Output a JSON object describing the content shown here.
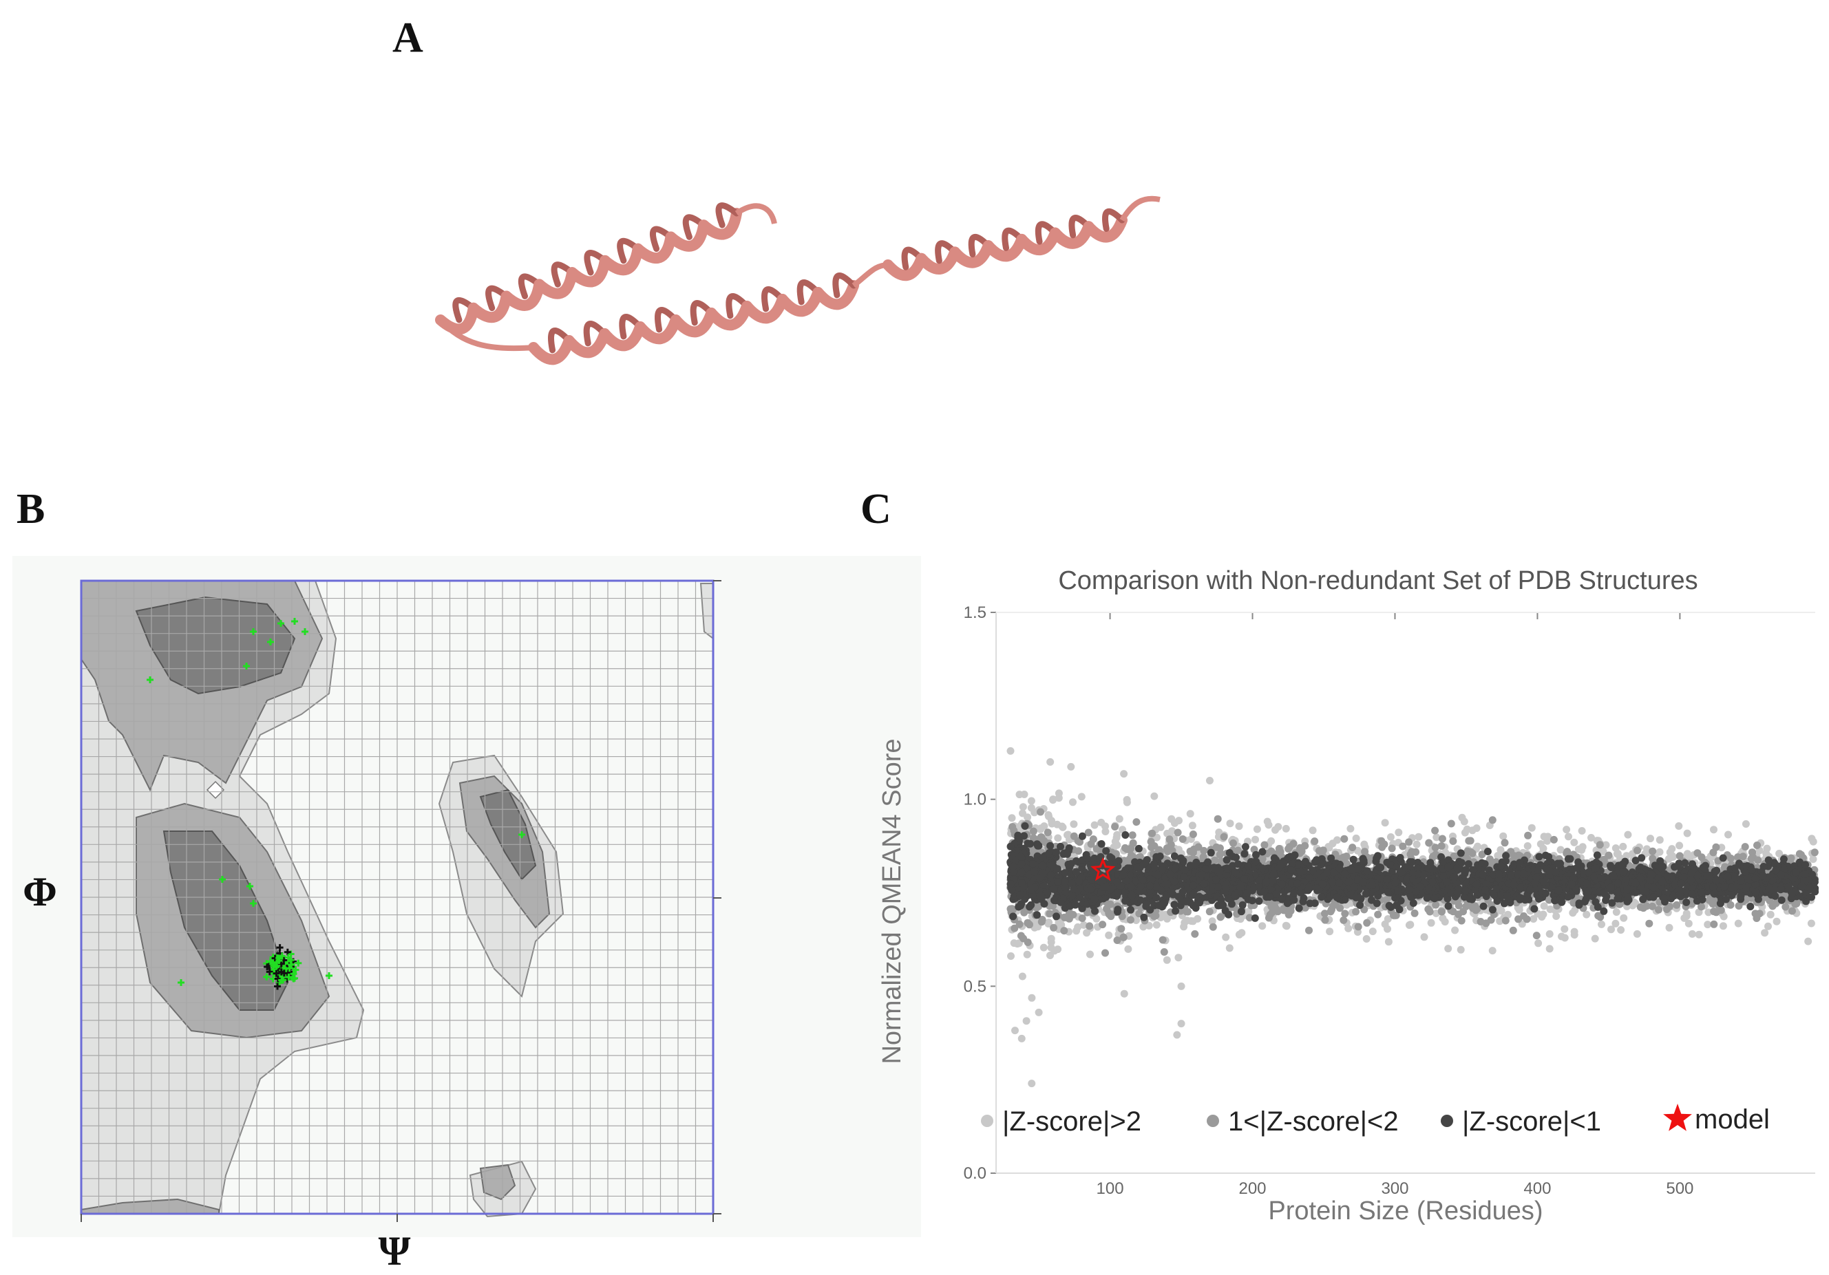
{
  "panels": {
    "a": "A",
    "b": "B",
    "c": "C"
  },
  "colors": {
    "protein": "#d98a82",
    "protein_dark": "#b0605a",
    "rama_border": "#6b6bd6",
    "rama_grid": "#a8a8a8",
    "rama_region_core": "#7a7a7a",
    "rama_region_allowed": "#a6a6a6",
    "rama_region_generous": "#cfcfcf",
    "rama_points": "#22dd22",
    "zscore_gt2": "#c8c8c8",
    "zscore_1_2": "#9a9a9a",
    "zscore_lt1": "#454545",
    "model_star": "#ee1111"
  },
  "ramachandran": {
    "x_symbol": "Ψ",
    "y_symbol": "Φ"
  },
  "chart_data": {
    "type": "scatter",
    "title": "Comparison with Non-redundant Set of PDB Structures",
    "xlabel": "Protein Size (Residues)",
    "ylabel": "Normalized QMEAN4 Score",
    "xlim": [
      20,
      595
    ],
    "ylim": [
      0,
      1.5
    ],
    "x_ticks": [
      100,
      200,
      300,
      400,
      500
    ],
    "y_ticks": [
      0.0,
      0.5,
      1.0,
      1.5
    ],
    "x_tick_labels": [
      "100",
      "200",
      "300",
      "400",
      "500"
    ],
    "y_tick_labels": [
      "0.0",
      "0.5",
      "1.0",
      "1.5"
    ],
    "series": [
      {
        "name": "|Z-score|>2",
        "color": "#c8c8c8",
        "band_center": 0.78,
        "band_halfwidth_small": 0.22,
        "band_halfwidth_large": 0.06,
        "x_range": [
          30,
          595
        ]
      },
      {
        "name": "1<|Z-score|<2",
        "color": "#9a9a9a",
        "band_center": 0.78,
        "band_halfwidth_small": 0.14,
        "band_halfwidth_large": 0.045,
        "x_range": [
          30,
          595
        ]
      },
      {
        "name": "|Z-score|<1",
        "color": "#454545",
        "band_center": 0.78,
        "band_halfwidth_small": 0.08,
        "band_halfwidth_large": 0.03,
        "x_range": [
          30,
          595
        ]
      }
    ],
    "outliers": [
      {
        "x": 58,
        "y": 1.1
      },
      {
        "x": 170,
        "y": 1.05
      },
      {
        "x": 45,
        "y": 0.24
      },
      {
        "x": 38,
        "y": 0.36
      },
      {
        "x": 150,
        "y": 0.4
      },
      {
        "x": 147,
        "y": 0.37
      },
      {
        "x": 50,
        "y": 0.43
      },
      {
        "x": 110,
        "y": 0.48
      },
      {
        "x": 140,
        "y": 0.57
      },
      {
        "x": 590,
        "y": 0.62
      },
      {
        "x": 150,
        "y": 0.5
      },
      {
        "x": 60,
        "y": 1.0
      }
    ],
    "model": {
      "name": "model",
      "x": 95,
      "y": 0.81
    },
    "legend": {
      "placement": "bottom",
      "items": [
        "|Z-score|>2",
        "1<|Z-score|<2",
        "|Z-score|<1",
        "model"
      ]
    }
  }
}
